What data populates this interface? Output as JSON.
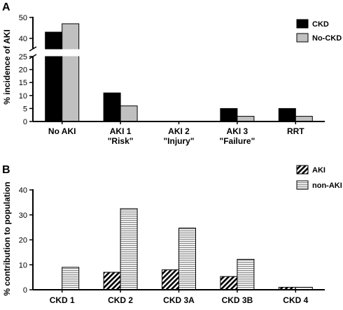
{
  "chart_data": [
    {
      "panel": "A",
      "type": "bar",
      "ylabel": "% incidence of AKI",
      "categories": [
        [
          "No AKI"
        ],
        [
          "AKI 1",
          "\"Risk\""
        ],
        [
          "AKI 2",
          "\"Injury\""
        ],
        [
          "AKI 3",
          "\"Failure\""
        ],
        [
          "RRT"
        ]
      ],
      "series": [
        {
          "name": "CKD",
          "fill": "#000000",
          "values": [
            43,
            11,
            0,
            5,
            5
          ]
        },
        {
          "name": "No-CKD",
          "fill": "#c0c0c0",
          "values": [
            47,
            6,
            0,
            2,
            2
          ]
        }
      ],
      "y_break": {
        "lower_range": [
          0,
          25
        ],
        "upper_range": [
          35,
          50
        ]
      },
      "yticks_lower": [
        0,
        5,
        10,
        15,
        20,
        25
      ],
      "yticks_upper": [
        40,
        50
      ],
      "legend_position": "top-right"
    },
    {
      "panel": "B",
      "type": "bar",
      "ylabel": "% contribution to population",
      "categories": [
        [
          "CKD 1"
        ],
        [
          "CKD 2"
        ],
        [
          "CKD 3A"
        ],
        [
          "CKD 3B"
        ],
        [
          "CKD 4"
        ]
      ],
      "series": [
        {
          "name": "AKI",
          "pattern": "diagonal",
          "values": [
            0,
            7,
            8,
            5.3,
            1
          ]
        },
        {
          "name": "non-AKI",
          "pattern": "horizontal",
          "values": [
            9,
            32.5,
            24.7,
            12.2,
            1
          ]
        }
      ],
      "ylim": [
        0,
        40
      ],
      "yticks": [
        0,
        10,
        20,
        30,
        40
      ],
      "legend_position": "top-right"
    }
  ]
}
